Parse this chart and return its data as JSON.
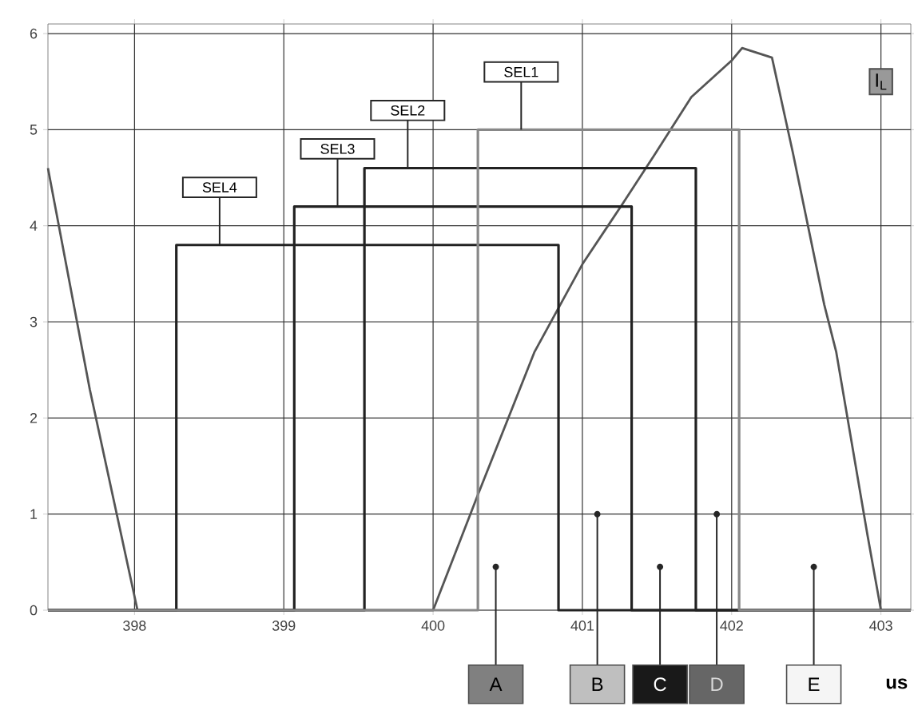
{
  "chart_data": {
    "type": "line",
    "xlabel": "us",
    "xlim": [
      397.42,
      403.2
    ],
    "ylim": [
      0,
      6.1
    ],
    "xticks": [
      398,
      399,
      400,
      401,
      402,
      403
    ],
    "yticks": [
      0,
      1,
      2,
      3,
      4,
      5,
      6
    ],
    "grid": true,
    "series": [
      {
        "name": "I$_{L}$",
        "color": "#555555",
        "x": [
          397.42,
          397.7,
          398.02,
          400,
          400.3,
          400.68,
          401.0,
          401.27,
          401.48,
          401.73,
          402.0,
          402.07,
          402.27,
          402.41,
          402.62,
          402.7,
          402.91,
          403.0
        ],
        "values": [
          4.6,
          2.3,
          0,
          0,
          1.2,
          2.69,
          3.6,
          4.23,
          4.73,
          5.34,
          5.72,
          5.85,
          5.75,
          4.76,
          3.18,
          2.69,
          0.78,
          0
        ]
      },
      {
        "name": "SEL4",
        "type": "step",
        "color": "#222222",
        "x": [
          397.42,
          398.28,
          400.84,
          403.2
        ],
        "values": [
          0,
          3.8,
          0,
          0
        ]
      },
      {
        "name": "SEL3",
        "type": "step",
        "color": "#222222",
        "x": [
          397.42,
          399.07,
          401.33,
          403.2
        ],
        "values": [
          0,
          4.2,
          0,
          0
        ]
      },
      {
        "name": "SEL2",
        "type": "step",
        "color": "#222222",
        "x": [
          397.42,
          399.54,
          401.76,
          403.2
        ],
        "values": [
          0,
          4.6,
          0,
          0
        ]
      },
      {
        "name": "SEL1",
        "type": "step",
        "color": "#888888",
        "x": [
          397.42,
          400.3,
          402.05,
          403.2
        ],
        "values": [
          0,
          5.0,
          0,
          0
        ]
      }
    ],
    "annotations": [
      {
        "text": "A",
        "x": 400.42,
        "y": 0.45
      },
      {
        "text": "B",
        "x": 401.1,
        "y": 1.0
      },
      {
        "text": "C",
        "x": 401.52,
        "y": 0.45
      },
      {
        "text": "D",
        "x": 401.9,
        "y": 1.0
      },
      {
        "text": "E",
        "x": 402.55,
        "y": 0.45
      }
    ]
  }
}
